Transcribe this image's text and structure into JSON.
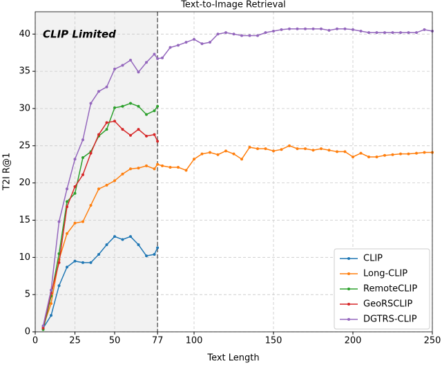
{
  "chart_data": {
    "type": "line",
    "title": "Text-to-Image Retrieval",
    "x_label": "Text Length",
    "y_label": "T2I R@1",
    "annotation": "CLIP Limited",
    "shaded_region": [
      0,
      77
    ],
    "xlim": [
      0,
      250
    ],
    "ylim": [
      0,
      43
    ],
    "xticks": [
      0,
      25,
      50,
      77,
      100,
      150,
      200,
      250
    ],
    "yticks": [
      0,
      5,
      10,
      15,
      20,
      25,
      30,
      35,
      40
    ],
    "grid": true,
    "legend": "lower right",
    "x": [
      5,
      10,
      15,
      20,
      25,
      30,
      35,
      40,
      45,
      50,
      55,
      60,
      65,
      70,
      75,
      77,
      80,
      85,
      90,
      95,
      100,
      105,
      110,
      115,
      120,
      125,
      130,
      135,
      140,
      145,
      150,
      155,
      160,
      165,
      170,
      175,
      180,
      185,
      190,
      195,
      200,
      205,
      210,
      215,
      220,
      225,
      230,
      235,
      240,
      245,
      250
    ],
    "series": [
      {
        "name": "CLIP",
        "color": "#1f77b4",
        "values": [
          0.5,
          2.2,
          6.2,
          8.7,
          9.5,
          9.3,
          9.3,
          10.4,
          11.7,
          12.8,
          12.4,
          12.8,
          11.7,
          10.2,
          10.4,
          11.3,
          null,
          null,
          null,
          null,
          null,
          null,
          null,
          null,
          null,
          null,
          null,
          null,
          null,
          null,
          null,
          null,
          null,
          null,
          null,
          null,
          null,
          null,
          null,
          null,
          null,
          null,
          null,
          null,
          null,
          null,
          null,
          null,
          null,
          null,
          null
        ]
      },
      {
        "name": "Long-CLIP",
        "color": "#ff7f0e",
        "values": [
          0.7,
          3.8,
          9.7,
          13.2,
          14.6,
          14.8,
          17.0,
          19.2,
          19.7,
          20.3,
          21.2,
          21.9,
          22.0,
          22.3,
          21.9,
          22.5,
          22.3,
          22.1,
          22.1,
          21.7,
          23.2,
          23.9,
          24.1,
          23.8,
          24.3,
          23.9,
          23.2,
          24.8,
          24.6,
          24.6,
          24.3,
          24.5,
          25.0,
          24.6,
          24.6,
          24.4,
          24.6,
          24.4,
          24.2,
          24.2,
          23.5,
          24.0,
          23.5,
          23.5,
          23.7,
          23.8,
          23.9,
          23.9,
          24.0,
          24.1,
          24.1
        ]
      },
      {
        "name": "RemoteCLIP",
        "color": "#2ca02c",
        "values": [
          0.3,
          4.8,
          10.5,
          17.5,
          18.6,
          23.4,
          24.2,
          26.3,
          27.2,
          30.1,
          30.3,
          30.7,
          30.3,
          29.2,
          29.7,
          30.3,
          null,
          null,
          null,
          null,
          null,
          null,
          null,
          null,
          null,
          null,
          null,
          null,
          null,
          null,
          null,
          null,
          null,
          null,
          null,
          null,
          null,
          null,
          null,
          null,
          null,
          null,
          null,
          null,
          null,
          null,
          null,
          null,
          null,
          null,
          null
        ]
      },
      {
        "name": "GeoRSCLIP",
        "color": "#d62728",
        "values": [
          0.5,
          5.2,
          9.3,
          16.8,
          19.5,
          21.1,
          24.0,
          26.5,
          28.1,
          28.3,
          27.2,
          26.4,
          27.2,
          26.3,
          26.5,
          25.6,
          null,
          null,
          null,
          null,
          null,
          null,
          null,
          null,
          null,
          null,
          null,
          null,
          null,
          null,
          null,
          null,
          null,
          null,
          null,
          null,
          null,
          null,
          null,
          null,
          null,
          null,
          null,
          null,
          null,
          null,
          null,
          null,
          null,
          null,
          null
        ]
      },
      {
        "name": "DGTRS-CLIP",
        "color": "#9467bd",
        "values": [
          0.8,
          5.6,
          14.8,
          19.2,
          23.2,
          25.8,
          30.7,
          32.3,
          32.9,
          35.3,
          35.8,
          36.5,
          34.9,
          36.2,
          37.3,
          36.7,
          36.8,
          38.2,
          38.5,
          38.9,
          39.3,
          38.7,
          38.9,
          40.0,
          40.2,
          40.0,
          39.8,
          39.8,
          39.8,
          40.2,
          40.4,
          40.6,
          40.7,
          40.7,
          40.7,
          40.7,
          40.7,
          40.5,
          40.7,
          40.7,
          40.6,
          40.4,
          40.2,
          40.2,
          40.2,
          40.2,
          40.2,
          40.2,
          40.2,
          40.6,
          40.4
        ]
      }
    ]
  }
}
